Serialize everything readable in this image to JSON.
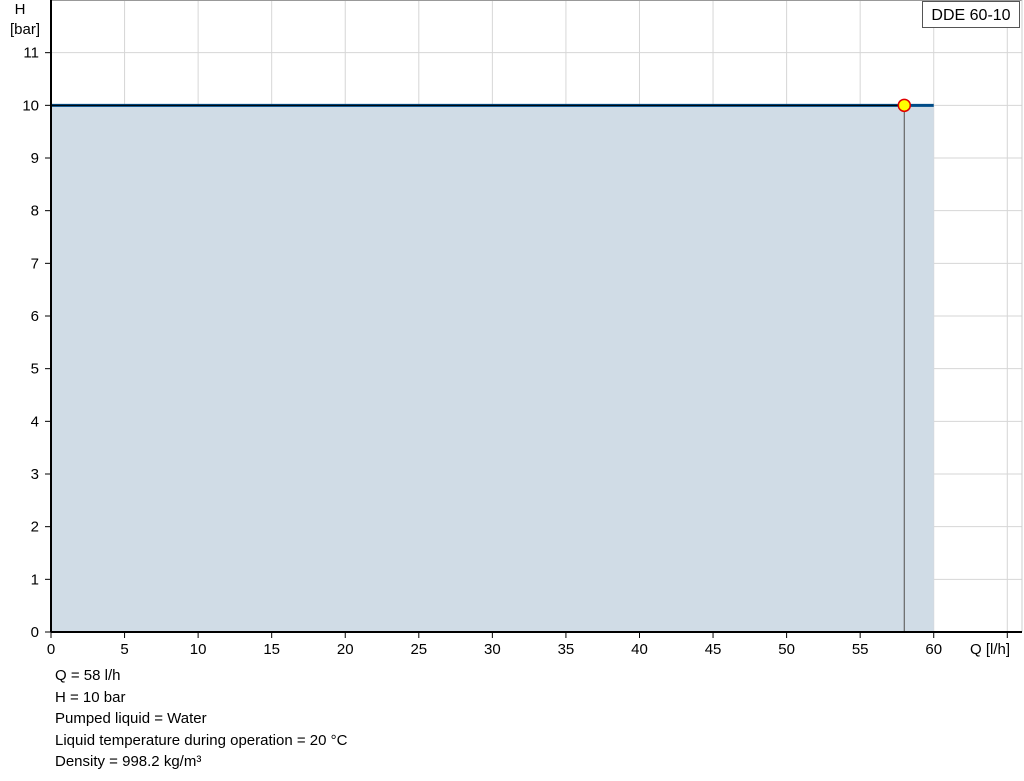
{
  "chart_data": {
    "type": "line",
    "title": "",
    "xlabel": "Q [l/h]",
    "ylabel_line1": "H",
    "ylabel_line2": "[bar]",
    "xlim": [
      0,
      66
    ],
    "ylim": [
      0,
      12
    ],
    "grid": true,
    "x_ticks": [
      0,
      5,
      10,
      15,
      20,
      25,
      30,
      35,
      40,
      45,
      50,
      55,
      60,
      65
    ],
    "x_tick_labels": [
      "0",
      "5",
      "10",
      "15",
      "20",
      "25",
      "30",
      "35",
      "40",
      "45",
      "50",
      "55",
      "60",
      ""
    ],
    "y_ticks": [
      0,
      1,
      2,
      3,
      4,
      5,
      6,
      7,
      8,
      9,
      10,
      11,
      12
    ],
    "y_tick_labels": [
      "0",
      "1",
      "2",
      "3",
      "4",
      "5",
      "6",
      "7",
      "8",
      "9",
      "10",
      "11",
      ""
    ],
    "series": [
      {
        "name": "DDE 60-10",
        "x": [
          0,
          60
        ],
        "y": [
          10,
          10
        ],
        "color": "#004b87",
        "fill": "#d0dce6"
      }
    ],
    "operating_point": {
      "x": 58,
      "y": 10,
      "fill": "#ffff00",
      "stroke": "#e00000"
    },
    "legend_placement": "top-right"
  },
  "legend": {
    "label": "DDE 60-10"
  },
  "info": [
    "Q = 58 l/h",
    "H = 10 bar",
    "Pumped liquid = Water",
    "Liquid temperature during operation = 20 °C",
    "Density = 998.2 kg/m³"
  ]
}
